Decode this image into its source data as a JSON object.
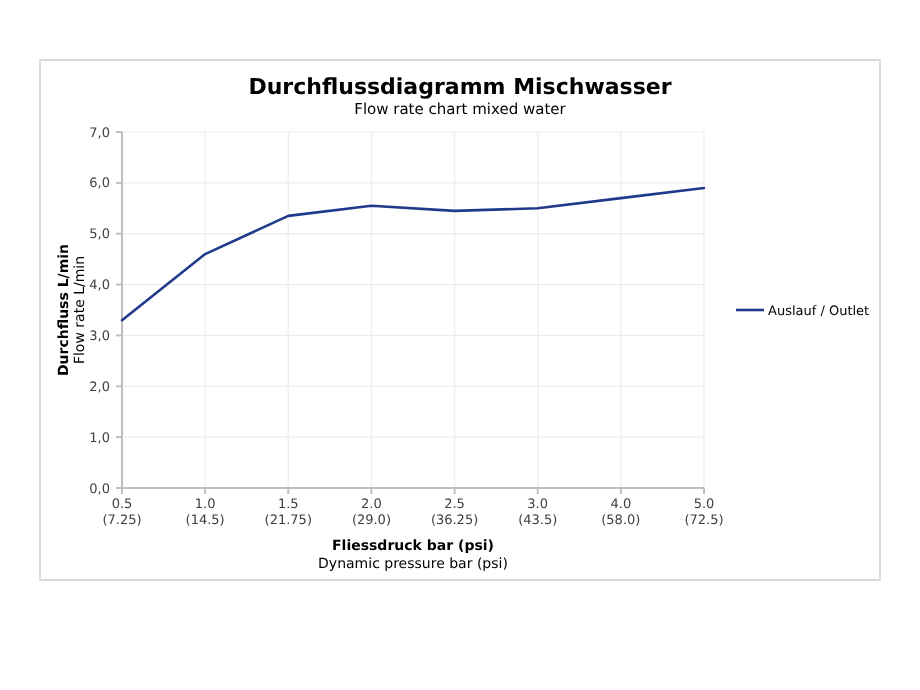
{
  "chart_data": {
    "type": "line",
    "title": "Durchflussdiagramm Mischwasser",
    "subtitle": "Flow rate chart mixed water",
    "xlabel": "Fliessdruck bar (psi)\nDynamic pressure bar (psi)",
    "ylabel": "Durchfluss L/min\nFlow rate L/min",
    "categories": [
      "0.5\n(7.25)",
      "1.0\n(14.5)",
      "1.5\n(21.75)",
      "2.0\n(29.0)",
      "2.5\n(36.25)",
      "3.0\n(43.5)",
      "4.0\n(58.0)",
      "5.0\n(72.5)"
    ],
    "series": [
      {
        "name": "Auslauf / Outlet",
        "color": "#1f3a8a",
        "values": [
          3.3,
          4.6,
          5.35,
          5.55,
          5.45,
          5.5,
          5.7,
          5.9
        ]
      }
    ],
    "ylim": [
      0,
      7
    ],
    "yticks": [
      {
        "value": 0,
        "label": "0,0"
      },
      {
        "value": 1,
        "label": "1,0"
      },
      {
        "value": 2,
        "label": "2,0"
      },
      {
        "value": 3,
        "label": "3,0"
      },
      {
        "value": 4,
        "label": "4,0"
      },
      {
        "value": 5,
        "label": "5,0"
      },
      {
        "value": 6,
        "label": "6,0"
      },
      {
        "value": 7,
        "label": "7,0"
      }
    ],
    "grid": true,
    "legend": "right"
  }
}
